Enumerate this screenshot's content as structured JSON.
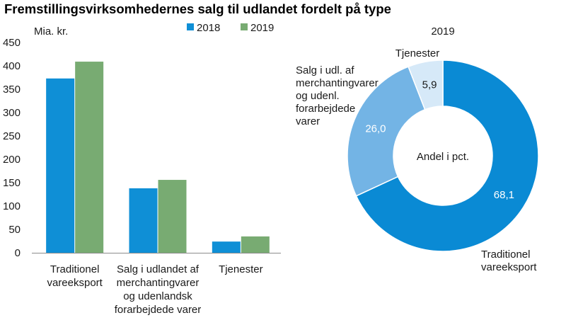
{
  "title": "Fremstillingsvirksomhedernes salg til udlandet fordelt på type",
  "chart_data": [
    {
      "type": "bar",
      "ylabel": "Mia. kr.",
      "ylim": [
        0,
        450
      ],
      "yticks": [
        0,
        50,
        100,
        150,
        200,
        250,
        300,
        350,
        400,
        450
      ],
      "categories": [
        [
          "Traditionel",
          "vareeksport"
        ],
        [
          "Salg i udlandet af",
          "merchantingvarer",
          "og udenlandsk",
          "forarbejdede varer"
        ],
        [
          "Tjenester"
        ]
      ],
      "series": [
        {
          "name": "2018",
          "color": "#0f8fd6",
          "values": [
            373,
            138,
            24
          ]
        },
        {
          "name": "2019",
          "color": "#78ab72",
          "values": [
            409,
            156,
            35
          ]
        }
      ],
      "legend": "top-right",
      "grid": false
    },
    {
      "type": "pie",
      "variant": "donut",
      "title": "2019",
      "center_label": "Andel i pct.",
      "slices": [
        {
          "label": [
            "Traditionel",
            "vareeksport"
          ],
          "value": 68.1,
          "value_label": "68,1",
          "color": "#0a8ad4",
          "value_color": "#ffffff"
        },
        {
          "label": [
            "Salg i udl. af",
            "merchantingvarer",
            "og udenl.",
            "forarbejdede",
            "varer"
          ],
          "value": 26.0,
          "value_label": "26,0",
          "color": "#73b4e5",
          "value_color": "#ffffff"
        },
        {
          "label": [
            "Tjenester"
          ],
          "value": 5.9,
          "value_label": "5,9",
          "color": "#d6e9f8",
          "value_color": "#1a1a1a"
        }
      ]
    }
  ]
}
